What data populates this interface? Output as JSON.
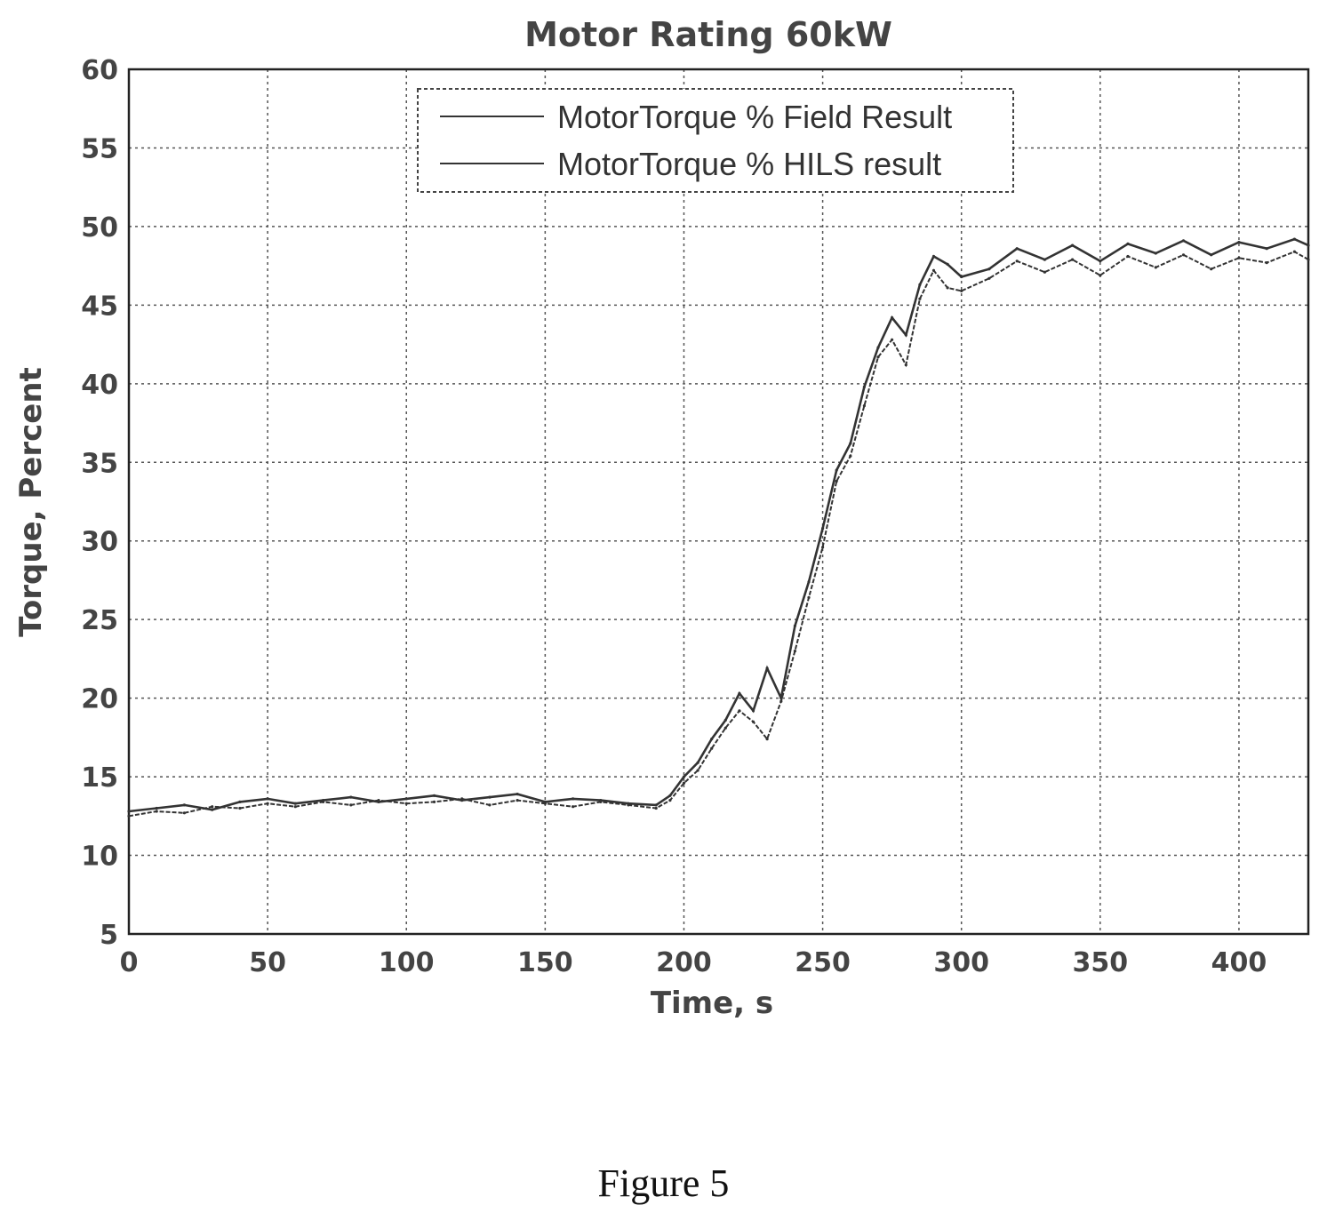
{
  "caption": "Figure 5",
  "chart_data": {
    "type": "line",
    "title": "Motor Rating 60kW",
    "xlabel": "Time, s",
    "ylabel": "Torque, Percent",
    "xlim": [
      0,
      425
    ],
    "ylim": [
      5,
      60
    ],
    "xticks": [
      0,
      50,
      100,
      150,
      200,
      250,
      300,
      350,
      400
    ],
    "yticks": [
      5,
      10,
      15,
      20,
      25,
      30,
      35,
      40,
      45,
      50,
      55,
      60
    ],
    "grid": true,
    "legend_position": "top-center",
    "colors": {
      "line": "#333333",
      "grid": "#555555",
      "axes": "#222222"
    },
    "series": [
      {
        "name": "MotorTorque % Field Result",
        "x": [
          0,
          10,
          20,
          30,
          40,
          50,
          60,
          70,
          80,
          90,
          100,
          110,
          120,
          130,
          140,
          150,
          160,
          170,
          180,
          190,
          195,
          200,
          205,
          210,
          215,
          220,
          225,
          230,
          235,
          240,
          245,
          250,
          255,
          260,
          265,
          270,
          275,
          280,
          285,
          290,
          295,
          300,
          310,
          320,
          330,
          340,
          350,
          360,
          370,
          380,
          390,
          400,
          410,
          420,
          425
        ],
        "y": [
          12.8,
          13.0,
          13.2,
          12.9,
          13.4,
          13.6,
          13.3,
          13.5,
          13.7,
          13.4,
          13.6,
          13.8,
          13.5,
          13.7,
          13.9,
          13.4,
          13.6,
          13.5,
          13.3,
          13.2,
          13.8,
          15.0,
          15.9,
          17.4,
          18.6,
          20.3,
          19.2,
          21.9,
          20.0,
          24.6,
          27.4,
          30.8,
          34.5,
          36.2,
          39.8,
          42.3,
          44.2,
          43.1,
          46.3,
          48.1,
          47.6,
          46.8,
          47.3,
          48.6,
          47.9,
          48.8,
          47.8,
          48.9,
          48.3,
          49.1,
          48.2,
          49.0,
          48.6,
          49.2,
          48.8
        ]
      },
      {
        "name": "MotorTorque % HILS result",
        "x": [
          0,
          10,
          20,
          30,
          40,
          50,
          60,
          70,
          80,
          90,
          100,
          110,
          120,
          130,
          140,
          150,
          160,
          170,
          180,
          190,
          195,
          200,
          205,
          210,
          215,
          220,
          225,
          230,
          235,
          240,
          245,
          250,
          255,
          260,
          265,
          270,
          275,
          280,
          285,
          290,
          295,
          300,
          310,
          320,
          330,
          340,
          350,
          360,
          370,
          380,
          390,
          400,
          410,
          420,
          425
        ],
        "y": [
          12.5,
          12.8,
          12.7,
          13.1,
          13.0,
          13.3,
          13.1,
          13.4,
          13.2,
          13.5,
          13.3,
          13.4,
          13.6,
          13.2,
          13.5,
          13.3,
          13.1,
          13.4,
          13.2,
          13.0,
          13.5,
          14.6,
          15.4,
          16.8,
          18.1,
          19.2,
          18.5,
          17.4,
          19.8,
          23.0,
          26.4,
          29.6,
          33.8,
          35.4,
          38.6,
          41.7,
          42.8,
          41.2,
          45.4,
          47.2,
          46.1,
          45.9,
          46.7,
          47.8,
          47.1,
          47.9,
          46.9,
          48.1,
          47.4,
          48.2,
          47.3,
          48.0,
          47.7,
          48.4,
          47.9
        ]
      }
    ]
  }
}
